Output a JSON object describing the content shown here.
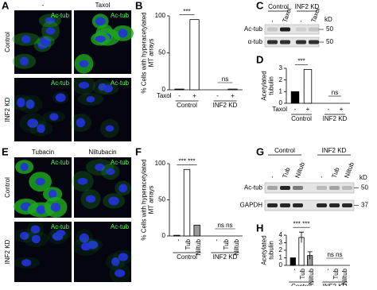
{
  "figure": {
    "panel_labels": [
      "A",
      "B",
      "C",
      "D",
      "E",
      "F",
      "G",
      "H"
    ],
    "panel_a": {
      "columns": [
        "-",
        "Taxol"
      ],
      "rows": [
        "Control",
        "INF2 KD"
      ],
      "stain": "Ac-tub"
    },
    "panel_c": {
      "groups": [
        "Control",
        "INF2 KD"
      ],
      "lanes": [
        "-",
        "Taxol",
        "-",
        "Taxol"
      ],
      "rows": [
        "Ac-tub",
        "α-tub"
      ],
      "unit": "kD",
      "markers": [
        "50",
        "50"
      ]
    },
    "panel_e": {
      "columns": [
        "Tubacin",
        "Niltubacin"
      ],
      "rows": [
        "Control",
        "INF2 KD"
      ],
      "stain": "Ac-tub"
    },
    "panel_g": {
      "groups": [
        "Control",
        "INF2 KD"
      ],
      "lanes": [
        "-",
        "Tub",
        "Niltub",
        "-",
        "Tub",
        "Niltub"
      ],
      "rows": [
        "Ac-tub",
        "GAPDH"
      ],
      "unit": "kD",
      "markers": [
        "50",
        "37"
      ]
    }
  },
  "chart_data": [
    {
      "type": "bar",
      "y_label": [
        "% Cells with hyperacetylated",
        "MT arrays"
      ],
      "x_label": "Taxol",
      "groups": [
        "Control",
        "INF2 KD"
      ],
      "categories": [
        "-",
        "+",
        "-",
        "+"
      ],
      "values": [
        1,
        95,
        0,
        1
      ],
      "colors": [
        "#000000",
        "#ffffff",
        "#000000",
        "#ffffff"
      ],
      "annotations": [
        "***",
        "ns"
      ],
      "ylim": [
        0,
        100
      ],
      "yticks": [
        0,
        50,
        100
      ]
    },
    {
      "type": "bar",
      "y_label": [
        "Acetylated",
        "tubulin"
      ],
      "x_label": "Taxol",
      "groups": [
        "Control",
        "INF2 KD"
      ],
      "categories": [
        "-",
        "+",
        "-",
        "+"
      ],
      "values": [
        1,
        2.9,
        0,
        0
      ],
      "colors": [
        "#000000",
        "#ffffff",
        "#000000",
        "#ffffff"
      ],
      "annotations": [
        "***",
        "ns"
      ],
      "ylim": [
        0,
        3
      ],
      "yticks": [
        0,
        1,
        2,
        3
      ]
    },
    {
      "type": "bar",
      "y_label": [
        "% Cells with hyperacetylated",
        "MT arrays"
      ],
      "groups": [
        "Control",
        "INF2 KD"
      ],
      "categories": [
        "-",
        "Tub",
        "Niltub",
        "-",
        "Tub",
        "Niltub"
      ],
      "values": [
        1,
        92,
        15,
        0,
        0,
        0
      ],
      "colors": [
        "#000000",
        "#ffffff",
        "#999999",
        "#000000",
        "#ffffff",
        "#999999"
      ],
      "annotations": [
        "*** ***",
        "ns ns"
      ],
      "ylim": [
        0,
        100
      ],
      "yticks": [
        0,
        50,
        100
      ]
    },
    {
      "type": "bar",
      "y_label": [
        "Acetylated",
        "tubulin"
      ],
      "groups": [
        "Control",
        "INF2 KD"
      ],
      "categories": [
        "-",
        "Tub",
        "Niltub",
        "-",
        "Tub",
        "Niltub"
      ],
      "values": [
        1,
        3.7,
        1.3,
        0,
        0,
        0
      ],
      "errors": [
        null,
        0.7,
        0.5,
        null,
        null,
        null
      ],
      "colors": [
        "#000000",
        "#ffffff",
        "#999999",
        "#000000",
        "#ffffff",
        "#999999"
      ],
      "annotations": [
        "*** ***",
        "ns ns"
      ],
      "ylim": [
        0,
        4
      ],
      "yticks": [
        0,
        1,
        2,
        3,
        4
      ]
    }
  ]
}
